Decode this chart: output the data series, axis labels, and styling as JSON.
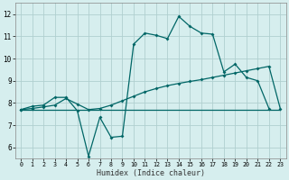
{
  "xlabel": "Humidex (Indice chaleur)",
  "background_color": "#d6eeee",
  "grid_color": "#b0d0d0",
  "line_color": "#006666",
  "xlim": [
    -0.5,
    23.5
  ],
  "ylim": [
    5.5,
    12.5
  ],
  "xticks": [
    0,
    1,
    2,
    3,
    4,
    5,
    6,
    7,
    8,
    9,
    10,
    11,
    12,
    13,
    14,
    15,
    16,
    17,
    18,
    19,
    20,
    21,
    22,
    23
  ],
  "yticks": [
    6,
    7,
    8,
    9,
    10,
    11,
    12
  ],
  "line1_x": [
    0,
    1,
    2,
    3,
    4,
    5,
    6,
    7,
    8,
    9,
    10,
    11,
    12,
    13,
    14,
    15,
    16,
    17,
    18,
    19,
    20,
    21,
    22
  ],
  "line1_y": [
    7.7,
    7.85,
    7.9,
    8.25,
    8.25,
    7.65,
    5.6,
    7.35,
    6.45,
    6.5,
    10.65,
    11.15,
    11.05,
    10.9,
    11.9,
    11.45,
    11.15,
    11.1,
    9.4,
    9.75,
    9.15,
    9.0,
    7.75
  ],
  "line2_x": [
    0,
    1,
    2,
    3,
    4,
    5,
    6,
    7,
    8,
    9,
    10,
    11,
    12,
    13,
    14,
    15,
    16,
    17,
    18,
    19,
    20,
    21,
    22,
    23
  ],
  "line2_y": [
    7.7,
    7.75,
    7.82,
    7.9,
    8.2,
    7.95,
    7.7,
    7.75,
    7.9,
    8.1,
    8.3,
    8.5,
    8.65,
    8.78,
    8.88,
    8.97,
    9.05,
    9.15,
    9.25,
    9.35,
    9.45,
    9.55,
    9.65,
    7.75
  ],
  "line3_x": [
    0,
    23
  ],
  "line3_y": [
    7.7,
    7.7
  ]
}
